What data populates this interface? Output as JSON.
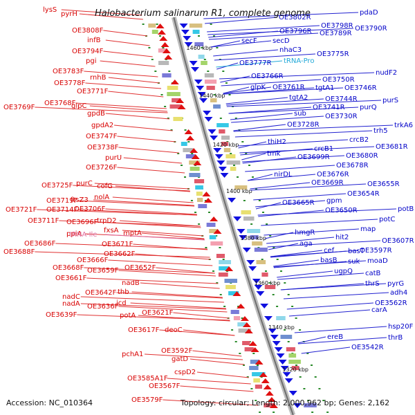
{
  "title": "Halobacterium salinarum R1, complete genome",
  "footer": {
    "accession": "Accession: NC_010364",
    "summary": "Topology: circular; Length: 2,000,962 bp; Genes: 2,162"
  },
  "scale_labels": [
    "1460 kbp",
    "1440 kbp",
    "1420 kbp",
    "1400 kbp",
    "1380 kbp",
    "1360 kbp",
    "1340 kbp",
    "1320 kbp"
  ],
  "forward_labels": [
    "lysS",
    "pyrH",
    "OE3808F",
    "infB",
    "OE3794F",
    "pgi",
    "OE3783F",
    "rnhB",
    "OE3778F",
    "OE3771F",
    "OE3769F",
    "OE3768F",
    "glpC",
    "gpdB",
    "gpdA2",
    "OE3747F",
    "OE3738F",
    "purU",
    "OE3726F",
    "OE3725F",
    "purC",
    "cofG",
    "OE3719F",
    "ftsZ3",
    "nolA",
    "OE3721F",
    "OE3714F",
    "OE3706F",
    "OE3711F",
    "OE3696F",
    "trpD2",
    "ppiA",
    "tRNA-Ile",
    "fxsA",
    "OE3686F",
    "mptA",
    "OE3688F",
    "OE3671F",
    "OE3666F",
    "OE3662F",
    "OE3668F",
    "OE3659F",
    "OE3652F",
    "OE3661F",
    "nadB",
    "nadC",
    "OE3642F",
    "thb",
    "nadA",
    "OE3636F",
    "icd",
    "OE3639F",
    "potA",
    "OE3621F",
    "OE3617F",
    "deoC",
    "pchA1",
    "OE3592F",
    "gatD",
    "OE3585A1F",
    "cspD2",
    "OE3567F",
    "OE3579F"
  ],
  "reverse_labels": [
    "OE3802R",
    "pdaD",
    "OE3798R",
    "OE3796R",
    "OE3789R",
    "OE3790R",
    "secF",
    "secD",
    "nhaC3",
    "OE3775R",
    "OE3777R",
    "tRNA-Pro",
    "nudF2",
    "OE3766R",
    "OE3750R",
    "glpK",
    "OE3761R",
    "tgtA1",
    "OE3746R",
    "tgtA2",
    "OE3744R",
    "purS",
    "purQ",
    "OE3741R",
    "sub",
    "OE3730R",
    "OE3728R",
    "trkA6",
    "trh5",
    "crcB2",
    "thiH2",
    "crcB1",
    "OE3681R",
    "tmk",
    "OE3699R",
    "OE3680R",
    "OE3678R",
    "nirDL",
    "OE3676R",
    "OE3669R",
    "OE3655R",
    "OE3654R",
    "gpm",
    "OE3665R",
    "OE3650R",
    "potB",
    "potC",
    "map",
    "hmgR",
    "hit2",
    "aga",
    "OE3607R",
    "cef",
    "basT",
    "OE3597R",
    "basB",
    "suk",
    "moaD",
    "ugpQ",
    "catB",
    "thrS",
    "pyrG",
    "adh4",
    "OE3562R",
    "carA",
    "hsp20F",
    "ereB",
    "thrB",
    "OE3542R"
  ]
}
